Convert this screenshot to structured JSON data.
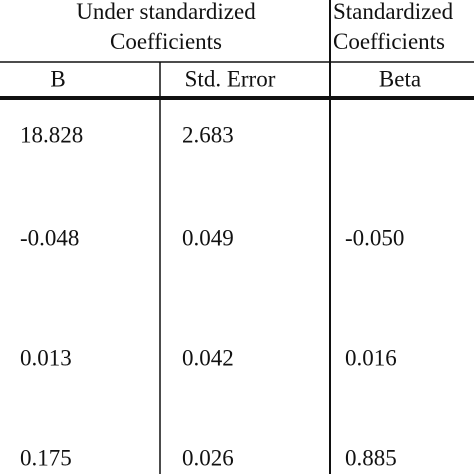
{
  "table": {
    "group_headers": [
      "Under standardized\nCoefficients",
      "Standardized\nCoefficients"
    ],
    "columns": [
      "B",
      "Std. Error",
      "Beta"
    ],
    "rows": [
      [
        "18.828",
        "2.683",
        null
      ],
      [
        "-0.048",
        "0.049",
        "-0.050"
      ],
      [
        "0.013",
        "0.042",
        "0.016"
      ],
      [
        "0.175",
        "0.026",
        "0.885"
      ]
    ]
  }
}
